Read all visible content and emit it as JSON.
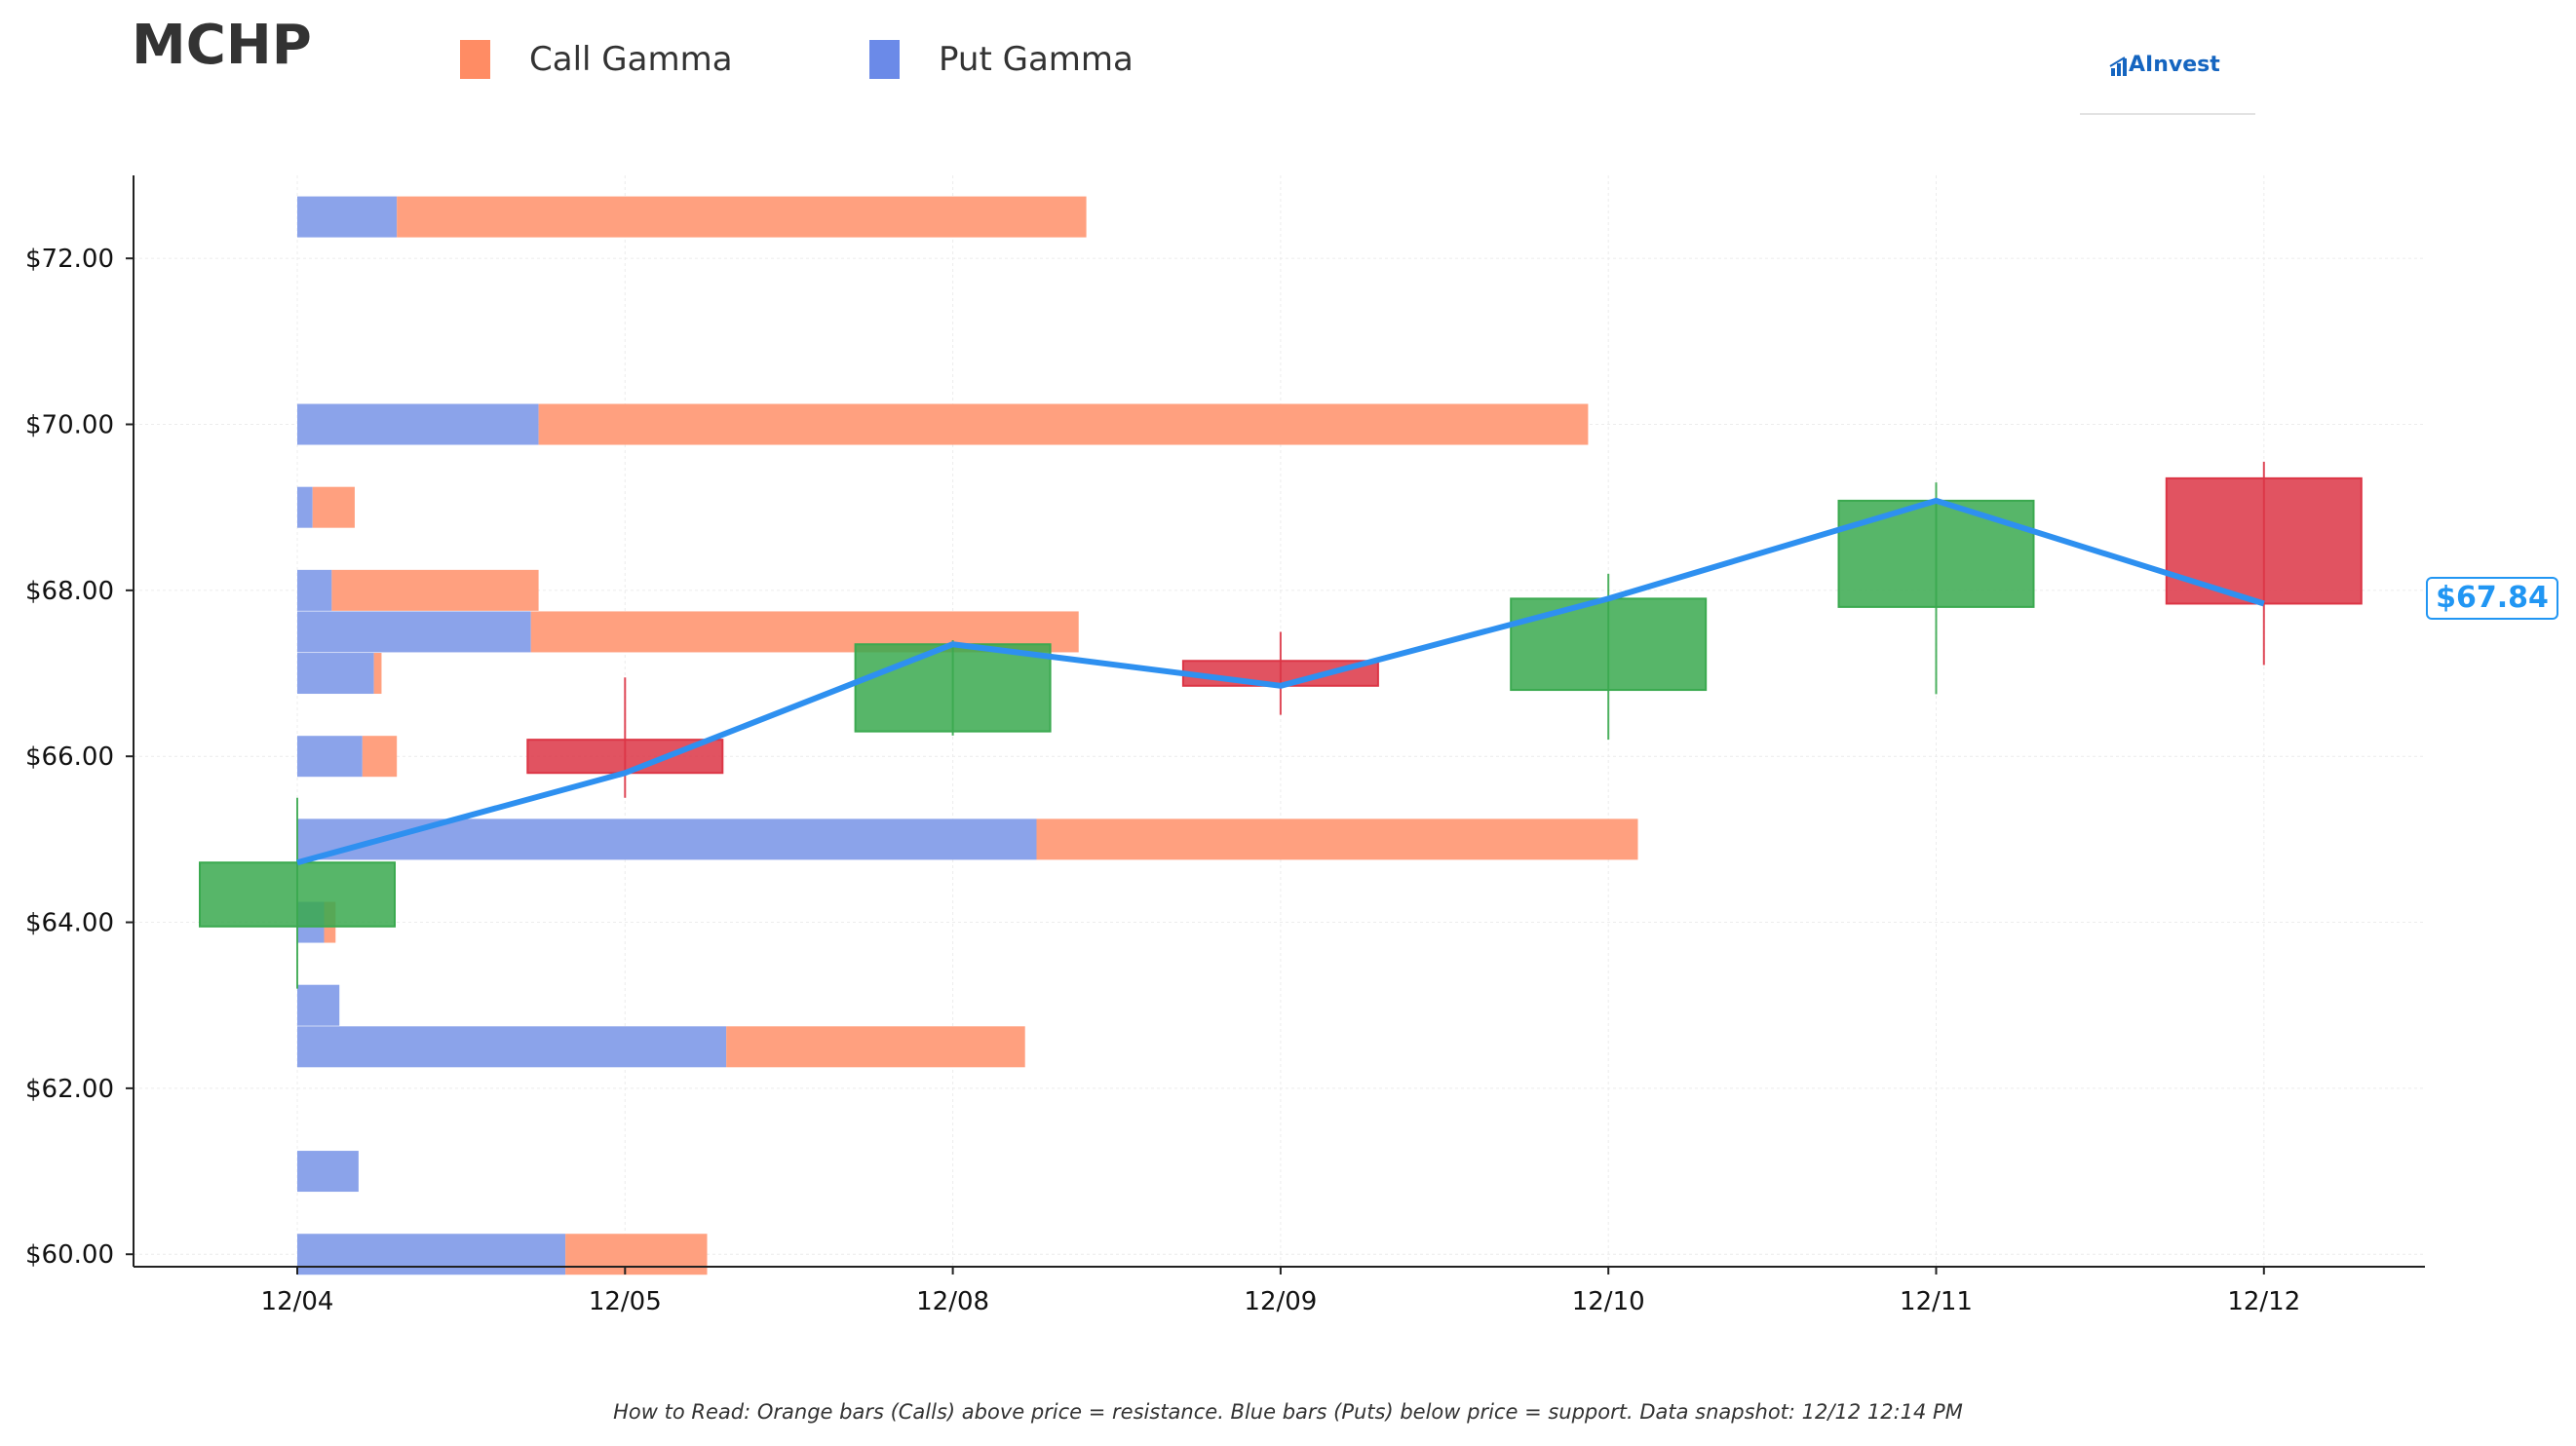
{
  "header": {
    "ticker": "MCHP",
    "logo_text": "AInvest"
  },
  "legend": [
    {
      "label": "Call Gamma",
      "color": "#ff8c64"
    },
    {
      "label": "Put Gamma",
      "color": "#6b8ae8"
    }
  ],
  "footer": {
    "note": "How to Read: Orange bars (Calls) above price = resistance. Blue bars (Puts) below price = support. Data snapshot: 12/12 12:14 PM"
  },
  "chart_data": {
    "type": "candlestick",
    "ylim": [
      59.85,
      73.0
    ],
    "y_ticks": [
      60,
      62,
      64,
      66,
      68,
      70,
      72
    ],
    "y_tick_format": "$",
    "x_categories": [
      "12/04",
      "12/05",
      "12/08",
      "12/09",
      "12/10",
      "12/11",
      "12/12"
    ],
    "grid": true,
    "colors": {
      "up": "#3aa94f",
      "down": "#dc3545",
      "line": "#2e90f0",
      "call": "#ffa07f",
      "put": "#8ba3ea"
    },
    "candles": [
      {
        "date": "12/04",
        "open": 63.95,
        "high": 65.5,
        "low": 63.2,
        "close": 64.72
      },
      {
        "date": "12/05",
        "open": 66.2,
        "high": 66.95,
        "low": 65.5,
        "close": 65.8
      },
      {
        "date": "12/08",
        "open": 66.3,
        "high": 67.4,
        "low": 66.25,
        "close": 67.35
      },
      {
        "date": "12/09",
        "open": 67.15,
        "high": 67.5,
        "low": 66.5,
        "close": 66.85
      },
      {
        "date": "12/10",
        "open": 66.8,
        "high": 68.2,
        "low": 66.2,
        "close": 67.9
      },
      {
        "date": "12/11",
        "open": 67.8,
        "high": 69.3,
        "low": 66.75,
        "close": 69.08
      },
      {
        "date": "12/12",
        "open": 69.35,
        "high": 69.55,
        "low": 67.1,
        "close": 67.84
      }
    ],
    "close_line": [
      64.72,
      65.8,
      67.35,
      66.85,
      67.9,
      69.08,
      67.84
    ],
    "last_price": {
      "value": 67.84,
      "label": "$67.84"
    },
    "gamma_bars": [
      {
        "strike": 72.5,
        "put": 0.26,
        "call": 1.8
      },
      {
        "strike": 70.0,
        "put": 0.63,
        "call": 2.74
      },
      {
        "strike": 69.0,
        "put": 0.04,
        "call": 0.11
      },
      {
        "strike": 68.0,
        "put": 0.09,
        "call": 0.54
      },
      {
        "strike": 67.5,
        "put": 0.61,
        "call": 1.43
      },
      {
        "strike": 67.0,
        "put": 0.2,
        "call": 0.02
      },
      {
        "strike": 66.0,
        "put": 0.17,
        "call": 0.09
      },
      {
        "strike": 65.0,
        "put": 1.93,
        "call": 1.57
      },
      {
        "strike": 64.0,
        "put": 0.07,
        "call": 0.03
      },
      {
        "strike": 63.0,
        "put": 0.11,
        "call": 0.0
      },
      {
        "strike": 62.5,
        "put": 1.12,
        "call": 0.78
      },
      {
        "strike": 61.0,
        "put": 0.16,
        "call": 0.0
      },
      {
        "strike": 60.0,
        "put": 0.7,
        "call": 0.37
      }
    ]
  }
}
